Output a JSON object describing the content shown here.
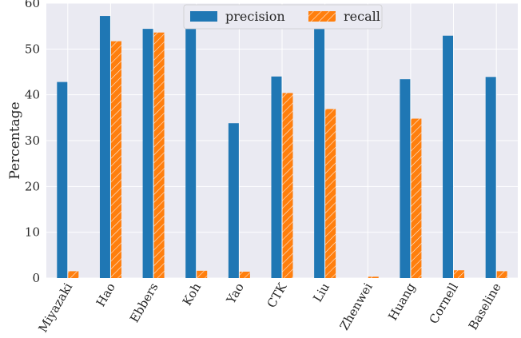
{
  "chart_data": {
    "type": "bar",
    "ylabel": "Percentage",
    "xlabel": "",
    "ylim": [
      0,
      60
    ],
    "yticks": [
      0,
      10,
      20,
      30,
      40,
      50,
      60
    ],
    "grid": true,
    "legend_placement": "top-center",
    "categories": [
      "Miyazaki",
      "Hao",
      "Ebbers",
      "Koh",
      "Yao",
      "CTK",
      "Liu",
      "Zhenwei",
      "Huang",
      "Cornell",
      "Baseline"
    ],
    "series": [
      {
        "name": "precision",
        "color": "#1f77b4",
        "hatch": "none",
        "values": [
          42.8,
          57.2,
          54.4,
          56.4,
          33.8,
          44.0,
          56.8,
          0,
          43.4,
          52.9,
          43.9
        ]
      },
      {
        "name": "recall",
        "color": "#ff7f0e",
        "hatch": "diagonal",
        "values": [
          1.5,
          51.7,
          53.6,
          1.6,
          1.4,
          40.4,
          36.9,
          0.3,
          34.8,
          1.7,
          1.5
        ]
      }
    ]
  }
}
